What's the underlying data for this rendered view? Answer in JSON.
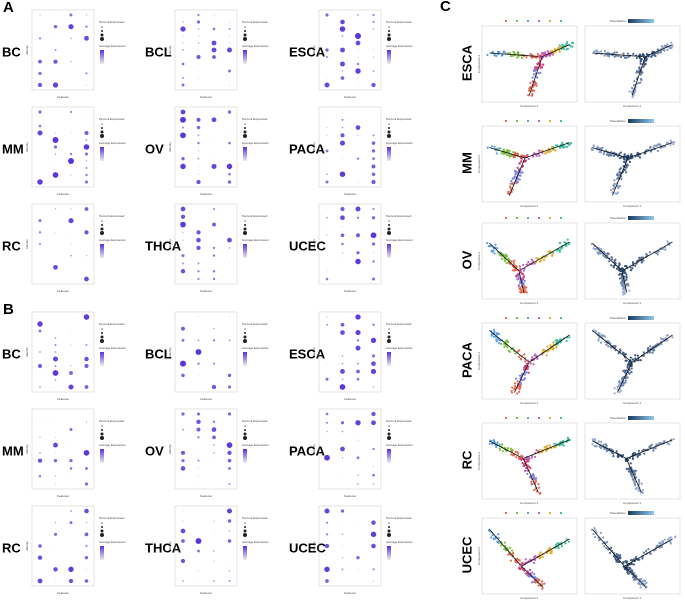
{
  "panels": [
    {
      "label": "A",
      "plots": [
        "BC",
        "BCL",
        "ESCA",
        "MM",
        "OV",
        "PACA",
        "RC",
        "THCA",
        "UCEC"
      ]
    },
    {
      "label": "B",
      "plots": [
        "BC",
        "BCL",
        "ESCA",
        "MM",
        "OV",
        "PACA",
        "RC",
        "THCA",
        "UCEC"
      ]
    },
    {
      "label": "C",
      "plots": [
        "ESCA",
        "MM",
        "OV",
        "PACA",
        "RC",
        "UCEC"
      ]
    }
  ],
  "dotplot_texts": {
    "x_title": "Features",
    "y_title": "Identity",
    "legend_size": "Percent Expressed",
    "legend_color": "Average Expression"
  },
  "trajectory_texts": {
    "x_title": "Component 1",
    "y_title": "Component 2",
    "legend": "Pseudotime"
  }
}
